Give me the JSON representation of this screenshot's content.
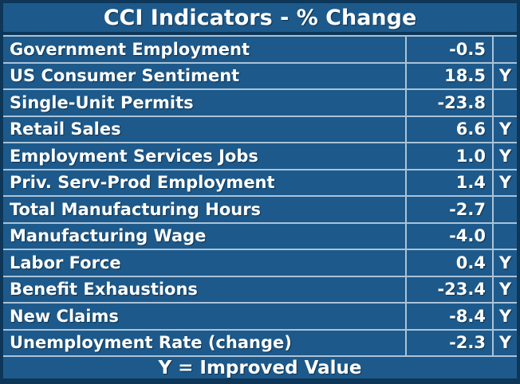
{
  "colors": {
    "cell_background": "#1d5a8b",
    "frame_border": "#0d3658",
    "separator": "#aac3d9",
    "text": "#ffffff"
  },
  "table": {
    "title": "CCI Indicators - % Change",
    "footer": "Y = Improved Value",
    "rows": [
      {
        "name": "Government Employment",
        "value": "-0.5",
        "flag": ""
      },
      {
        "name": "US Consumer Sentiment",
        "value": "18.5",
        "flag": "Y"
      },
      {
        "name": "Single-Unit Permits",
        "value": "-23.8",
        "flag": ""
      },
      {
        "name": "Retail Sales",
        "value": "6.6",
        "flag": "Y"
      },
      {
        "name": "Employment Services Jobs",
        "value": "1.0",
        "flag": "Y"
      },
      {
        "name": "Priv. Serv-Prod Employment",
        "value": "1.4",
        "flag": "Y"
      },
      {
        "name": "Total Manufacturing Hours",
        "value": "-2.7",
        "flag": ""
      },
      {
        "name": "Manufacturing Wage",
        "value": "-4.0",
        "flag": ""
      },
      {
        "name": "Labor Force",
        "value": "0.4",
        "flag": "Y"
      },
      {
        "name": "Benefit Exhaustions",
        "value": "-23.4",
        "flag": "Y"
      },
      {
        "name": "New Claims",
        "value": "-8.4",
        "flag": "Y"
      },
      {
        "name": "Unemployment Rate (change)",
        "value": "-2.3",
        "flag": "Y"
      }
    ]
  },
  "chart_data": {
    "type": "table",
    "title": "CCI Indicators - % Change",
    "columns": [
      "Indicator",
      "% Change",
      "Improved"
    ],
    "categories": [
      "Government Employment",
      "US Consumer Sentiment",
      "Single-Unit Permits",
      "Retail Sales",
      "Employment Services Jobs",
      "Priv. Serv-Prod Employment",
      "Total Manufacturing Hours",
      "Manufacturing Wage",
      "Labor Force",
      "Benefit Exhaustions",
      "New Claims",
      "Unemployment Rate (change)"
    ],
    "values": [
      -0.5,
      18.5,
      -23.8,
      6.6,
      1.0,
      1.4,
      -2.7,
      -4.0,
      0.4,
      -23.4,
      -8.4,
      -2.3
    ],
    "improved": [
      false,
      true,
      false,
      true,
      true,
      true,
      false,
      false,
      true,
      true,
      true,
      true
    ],
    "footnote": "Y = Improved Value"
  }
}
